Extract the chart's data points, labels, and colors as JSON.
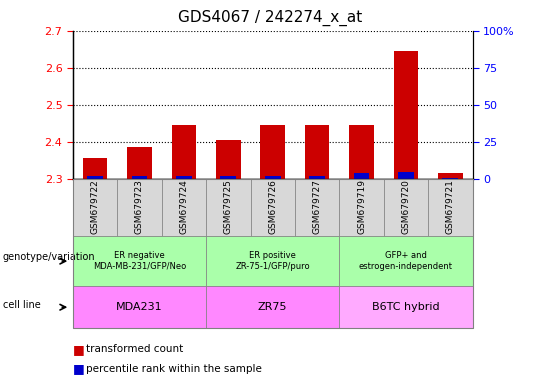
{
  "title": "GDS4067 / 242274_x_at",
  "samples": [
    "GSM679722",
    "GSM679723",
    "GSM679724",
    "GSM679725",
    "GSM679726",
    "GSM679727",
    "GSM679719",
    "GSM679720",
    "GSM679721"
  ],
  "transformed_count": [
    2.355,
    2.385,
    2.445,
    2.405,
    2.445,
    2.445,
    2.445,
    2.645,
    2.315
  ],
  "percentile_rank": [
    1.5,
    1.5,
    1.5,
    1.5,
    1.5,
    1.5,
    4.0,
    4.5,
    0.5
  ],
  "ymin": 2.3,
  "ymax": 2.7,
  "yticks": [
    2.3,
    2.4,
    2.5,
    2.6,
    2.7
  ],
  "right_yticks": [
    0,
    25,
    50,
    75,
    100
  ],
  "right_yticklabels": [
    "0",
    "25",
    "50",
    "75",
    "100%"
  ],
  "bar_width": 0.55,
  "red_color": "#cc0000",
  "blue_color": "#0000cc",
  "groups": [
    {
      "label": "ER negative\nMDA-MB-231/GFP/Neo",
      "start": 0,
      "end": 3,
      "bg": "#aaffaa"
    },
    {
      "label": "ER positive\nZR-75-1/GFP/puro",
      "start": 3,
      "end": 6,
      "bg": "#aaffaa"
    },
    {
      "label": "GFP+ and\nestrogen-independent",
      "start": 6,
      "end": 9,
      "bg": "#aaffaa"
    }
  ],
  "cell_lines": [
    {
      "label": "MDA231",
      "start": 0,
      "end": 3,
      "bg": "#ff88ff"
    },
    {
      "label": "ZR75",
      "start": 3,
      "end": 6,
      "bg": "#ff88ff"
    },
    {
      "label": "B6TC hybrid",
      "start": 6,
      "end": 9,
      "bg": "#ffaaff"
    }
  ],
  "legend_red": "transformed count",
  "legend_blue": "percentile rank within the sample",
  "genotype_label": "genotype/variation",
  "cell_line_label": "cell line",
  "sample_bg": "#d8d8d8"
}
